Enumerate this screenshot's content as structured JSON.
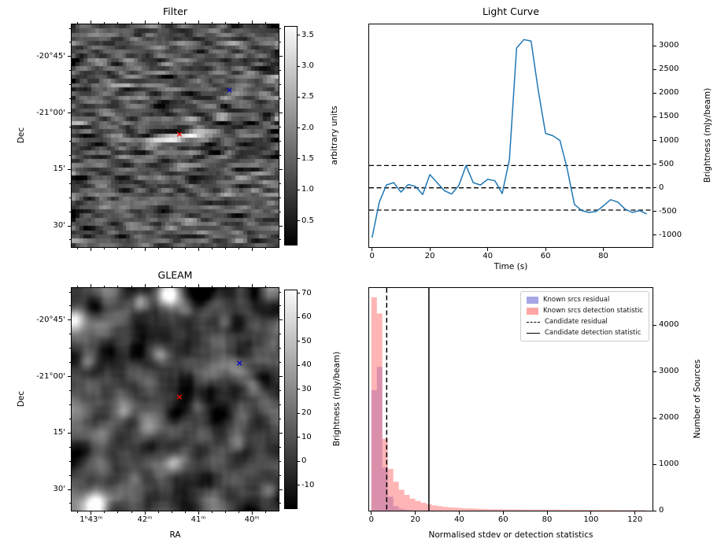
{
  "chart_data": [
    {
      "type": "heatmap",
      "title": "Filter",
      "xlabel": "",
      "ylabel": "Dec",
      "xtick_labels": [],
      "ytick_labels": [
        "-20°45'",
        "-21°00'",
        "15'",
        "30'"
      ],
      "colorbar_label": "arbitrary units",
      "colorbar_ticks": [
        "3.5",
        "3.0",
        "2.5",
        "2.0",
        "1.5",
        "1.0",
        "0.5"
      ],
      "colorbar_range": [
        0.1,
        3.65
      ],
      "image_description": "grayscale noise map with a bright horizontal streak at the candidate position",
      "markers": [
        {
          "label": "candidate",
          "symbol": "x",
          "color": "#ff0000",
          "fx": 0.521,
          "fy": 0.495
        },
        {
          "label": "known-source",
          "symbol": "x",
          "color": "#0000cc",
          "fx": 0.762,
          "fy": 0.298
        }
      ]
    },
    {
      "type": "line",
      "title": "Light Curve",
      "xlabel": "Time (s)",
      "ylabel": "Brightness (mJy/beam)",
      "line_color": "#1f77b4",
      "xlim": [
        -1,
        97
      ],
      "ylim": [
        -1250,
        3450
      ],
      "xticks": [
        0,
        20,
        40,
        60,
        80
      ],
      "yticks": [
        -1000,
        -500,
        0,
        500,
        1000,
        1500,
        2000,
        2500,
        3000
      ],
      "x": [
        0,
        2.5,
        5,
        7.5,
        10,
        12.5,
        15,
        17.5,
        20,
        22.5,
        25,
        27.5,
        30,
        32.5,
        35,
        37.5,
        40,
        42.5,
        45,
        47.5,
        50,
        52.5,
        55,
        57.5,
        60,
        62.5,
        65,
        67.5,
        70,
        72.5,
        75,
        77.5,
        80,
        82.5,
        85,
        87.5,
        90,
        92.5,
        95
      ],
      "y": [
        -1050,
        -300,
        60,
        110,
        -90,
        70,
        30,
        -140,
        280,
        110,
        -60,
        -130,
        50,
        470,
        110,
        60,
        180,
        150,
        -120,
        600,
        2950,
        3130,
        3100,
        2050,
        1150,
        1100,
        1000,
        400,
        -350,
        -480,
        -520,
        -500,
        -380,
        -250,
        -300,
        -450,
        -520,
        -480,
        -550
      ],
      "hlines": {
        "style": "dashed",
        "color": "#000000",
        "values": [
          470,
          0,
          -470
        ]
      }
    },
    {
      "type": "heatmap",
      "title": "GLEAM",
      "xlabel": "RA",
      "ylabel": "Dec",
      "xtick_labels": [
        "1ʰ43ᵐ",
        "42ᵐ",
        "41ᵐ",
        "40ᵐ"
      ],
      "ytick_labels": [
        "-20°45'",
        "-21°00'",
        "15'",
        "30'"
      ],
      "colorbar_label": "Brightness (mJy/beam)",
      "colorbar_ticks": [
        "70",
        "60",
        "50",
        "40",
        "30",
        "20",
        "10",
        "0",
        "-10"
      ],
      "colorbar_range": [
        -20,
        71.5
      ],
      "image_description": "smoothed grayscale sky map with several bright point sources",
      "markers": [
        {
          "label": "candidate",
          "symbol": "x",
          "color": "#ff0000",
          "fx": 0.521,
          "fy": 0.491
        },
        {
          "label": "known-source",
          "symbol": "x",
          "color": "#0000cc",
          "fx": 0.811,
          "fy": 0.34
        }
      ]
    },
    {
      "type": "bar",
      "subtype": "histogram",
      "title": "",
      "xlabel": "Normalised stdev or detection statistics",
      "ylabel": "Number of Sources",
      "xlim": [
        -1,
        128
      ],
      "ylim": [
        0,
        4800
      ],
      "xticks": [
        0,
        20,
        40,
        60,
        80,
        100,
        120
      ],
      "yticks": [
        0,
        1000,
        2000,
        3000,
        4000
      ],
      "bin_start": 0,
      "bin_width": 2.5,
      "series": [
        {
          "name": "Known srcs residual",
          "color": "#6b6bd6",
          "alpha": 0.5,
          "counts": [
            2600,
            3100,
            930,
            300,
            95,
            40,
            18,
            9,
            5,
            3,
            2,
            1,
            0,
            0,
            0,
            0,
            0,
            0,
            0,
            0,
            0,
            0,
            0,
            0,
            0,
            0,
            0,
            0,
            0,
            0,
            0,
            0,
            0,
            0,
            0,
            0,
            0,
            0,
            0,
            0,
            0,
            0,
            0,
            0,
            0,
            0,
            0,
            0,
            0,
            0
          ]
        },
        {
          "name": "Known srcs detection statistic",
          "color": "#ff6b6b",
          "alpha": 0.5,
          "counts": [
            4600,
            4250,
            1550,
            900,
            620,
            450,
            340,
            260,
            210,
            170,
            140,
            115,
            95,
            80,
            70,
            62,
            55,
            50,
            45,
            40,
            36,
            33,
            31,
            29,
            27,
            26,
            25,
            24,
            23,
            22,
            22,
            21,
            21,
            20,
            20,
            19,
            19,
            18,
            18,
            17,
            17,
            16,
            16,
            15,
            15,
            14,
            14,
            13,
            13,
            12
          ]
        }
      ],
      "vlines": [
        {
          "label": "Candidate residual",
          "style": "dashed",
          "x": 7.0
        },
        {
          "label": "Candidate detection statistic",
          "style": "solid",
          "x": 26.2
        }
      ],
      "legend_position": "upper right"
    }
  ]
}
